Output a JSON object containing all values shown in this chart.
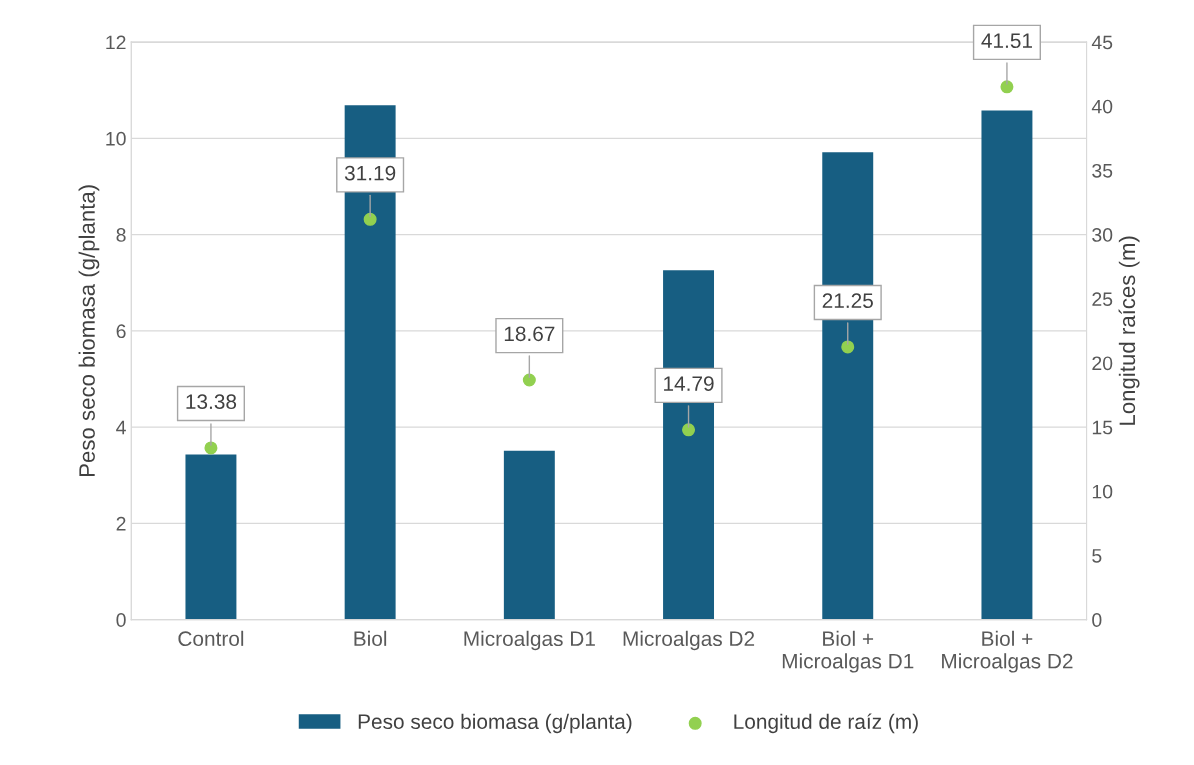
{
  "chart_data": {
    "type": "bar",
    "categories": [
      "Control",
      "Biol",
      "Microalgas D1",
      "Microalgas D2",
      "Biol +\nMicroalgas D1",
      "Biol +\nMicroalgas D2"
    ],
    "series": [
      {
        "name": "Peso seco biomasa (g/planta)",
        "color": "#175e82",
        "values": [
          3.43,
          10.69,
          3.51,
          7.26,
          9.71,
          10.58
        ]
      },
      {
        "name": "Longitud de raíz (m)",
        "type": "scatter",
        "axis": "y2",
        "color": "#92d050",
        "values": [
          13.38,
          31.19,
          18.67,
          14.79,
          21.25,
          41.51
        ],
        "data_labels": true
      }
    ],
    "ylabel": "Peso seco biomasa (g/planta)",
    "y2label": "Longitud raíces (m)",
    "ylim": [
      0,
      12
    ],
    "yticks": [
      0,
      2,
      4,
      6,
      8,
      10,
      12
    ],
    "y2lim": [
      0,
      45
    ],
    "y2ticks": [
      0,
      5,
      10,
      15,
      20,
      25,
      30,
      35,
      40,
      45
    ],
    "grid": "y",
    "legend": "bottom",
    "marker": "circle"
  }
}
